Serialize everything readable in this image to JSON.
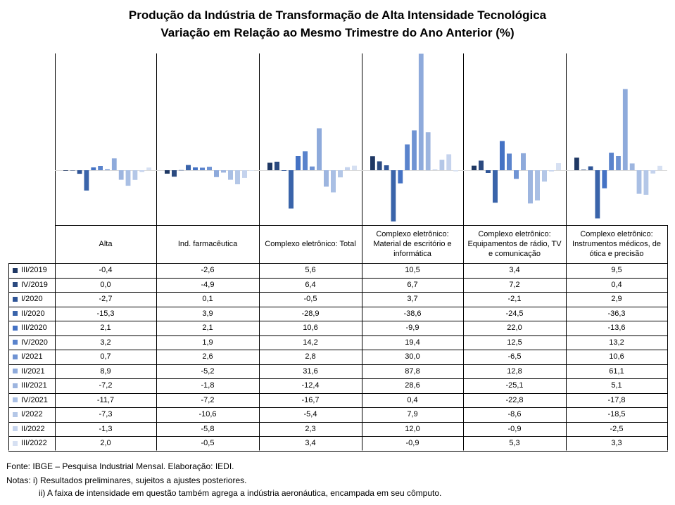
{
  "title": {
    "line1": "Produção da Indústria de Transformação de Alta Intensidade Tecnológica",
    "line2": "Variação em Relação ao Mesmo Trimestre do Ano Anterior (%)"
  },
  "chart_data": {
    "type": "bar",
    "categories": [
      "Alta",
      "Ind. farmacêutica",
      "Complexo eletrônico: Total",
      "Complexo eletrônico: Material de escritório e informática",
      "Complexo eletrônico: Equipamentos de rádio, TV e comunicação",
      "Complexo eletrônico: Instrumentos médicos, de ótica e precisão"
    ],
    "series": [
      {
        "name": "III/2019",
        "color": "#1f3864",
        "values": [
          -0.4,
          -2.6,
          5.6,
          10.5,
          3.4,
          9.5
        ],
        "labels": [
          "-0,4",
          "-2,6",
          "5,6",
          "10,5",
          "3,4",
          "9,5"
        ]
      },
      {
        "name": "IV/2019",
        "color": "#2b4a80",
        "values": [
          0.0,
          -4.9,
          6.4,
          6.7,
          7.2,
          0.4
        ],
        "labels": [
          "0,0",
          "-4,9",
          "6,4",
          "6,7",
          "7,2",
          "0,4"
        ]
      },
      {
        "name": "I/2020",
        "color": "#2f5597",
        "values": [
          -2.7,
          0.1,
          -0.5,
          3.7,
          -2.1,
          2.9
        ],
        "labels": [
          "-2,7",
          "0,1",
          "-0,5",
          "3,7",
          "-2,1",
          "2,9"
        ]
      },
      {
        "name": "II/2020",
        "color": "#3a64aa",
        "values": [
          -15.3,
          3.9,
          -28.9,
          -38.6,
          -24.5,
          -36.3
        ],
        "labels": [
          "-15,3",
          "3,9",
          "-28,9",
          "-38,6",
          "-24,5",
          "-36,3"
        ]
      },
      {
        "name": "III/2020",
        "color": "#4472c4",
        "values": [
          2.1,
          2.1,
          10.6,
          -9.9,
          22.0,
          -13.6
        ],
        "labels": [
          "2,1",
          "2,1",
          "10,6",
          "-9,9",
          "22,0",
          "-13,6"
        ]
      },
      {
        "name": "IV/2020",
        "color": "#5a83cc",
        "values": [
          3.2,
          1.9,
          14.2,
          19.4,
          12.5,
          13.2
        ],
        "labels": [
          "3,2",
          "1,9",
          "14,2",
          "19,4",
          "12,5",
          "13,2"
        ]
      },
      {
        "name": "I/2021",
        "color": "#6f93d3",
        "values": [
          0.7,
          2.6,
          2.8,
          30.0,
          -6.5,
          10.6
        ],
        "labels": [
          "0,7",
          "2,6",
          "2,8",
          "30,0",
          "-6,5",
          "10,6"
        ]
      },
      {
        "name": "II/2021",
        "color": "#8eaadb",
        "values": [
          8.9,
          -5.2,
          31.6,
          87.8,
          12.8,
          61.1
        ],
        "labels": [
          "8,9",
          "-5,2",
          "31,6",
          "87,8",
          "12,8",
          "61,1"
        ]
      },
      {
        "name": "III/2021",
        "color": "#9db5df",
        "values": [
          -7.2,
          -1.8,
          -12.4,
          28.6,
          -25.1,
          5.1
        ],
        "labels": [
          "-7,2",
          "-1,8",
          "-12,4",
          "28,6",
          "-25,1",
          "5,1"
        ]
      },
      {
        "name": "IV/2021",
        "color": "#a9bfe4",
        "values": [
          -11.7,
          -7.2,
          -16.7,
          0.4,
          -22.8,
          -17.8
        ],
        "labels": [
          "-11,7",
          "-7,2",
          "-16,7",
          "0,4",
          "-22,8",
          "-17,8"
        ]
      },
      {
        "name": "I/2022",
        "color": "#b4c7e7",
        "values": [
          -7.3,
          -10.6,
          -5.4,
          7.9,
          -8.6,
          -18.5
        ],
        "labels": [
          "-7,3",
          "-10,6",
          "-5,4",
          "7,9",
          "-8,6",
          "-18,5"
        ]
      },
      {
        "name": "II/2022",
        "color": "#c5d3ed",
        "values": [
          -1.3,
          -5.8,
          2.3,
          12.0,
          -0.9,
          -2.5
        ],
        "labels": [
          "-1,3",
          "-5,8",
          "2,3",
          "12,0",
          "-0,9",
          "-2,5"
        ]
      },
      {
        "name": "III/2022",
        "color": "#d6e0f2",
        "values": [
          2.0,
          -0.5,
          3.4,
          -0.9,
          5.3,
          3.3
        ],
        "labels": [
          "2,0",
          "-0,5",
          "3,4",
          "-0,9",
          "5,3",
          "3,3"
        ]
      }
    ],
    "ylim": [
      -40,
      88
    ],
    "grid": false,
    "legend": "left-of-table"
  },
  "footnotes": {
    "source": "Fonte: IBGE – Pesquisa Industrial Mensal. Elaboração: IEDI.",
    "note1": "Notas: i) Resultados preliminares, sujeitos a ajustes posteriores.",
    "note2": "ii) A faixa de intensidade em questão também agrega a indústria aeronáutica, encampada em seu cômputo."
  }
}
